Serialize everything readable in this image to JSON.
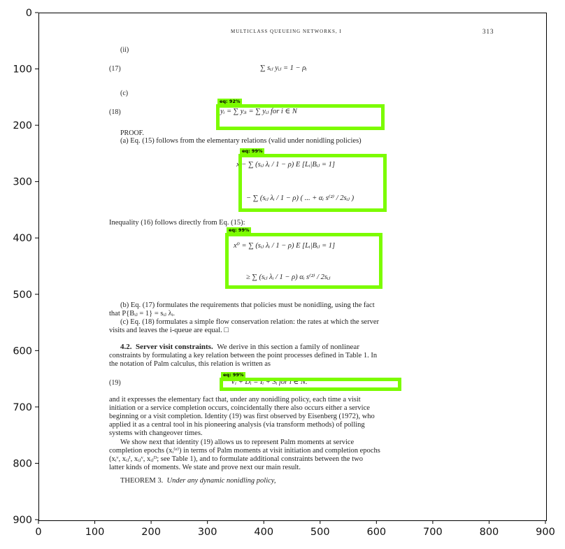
{
  "figure": {
    "x_ticks": [
      "0",
      "100",
      "200",
      "300",
      "400",
      "500",
      "600",
      "700",
      "800",
      "900"
    ],
    "y_ticks": [
      "0",
      "100",
      "200",
      "300",
      "400",
      "500",
      "600",
      "700",
      "800",
      "900"
    ]
  },
  "page": {
    "running_head": "MULTICLASS QUEUEING NETWORKS, I",
    "page_number": "313",
    "item_ii": "(ii)",
    "eq17_num": "(17)",
    "eq17_body": "∑ sᵢⱼ yᵢⱼ = 1 − ρᵢ",
    "item_c": "(c)",
    "eq18_num": "(18)",
    "eq18_body": "yᵢ = ∑ yⱼᵢ = ∑ yᵢⱼ    for i ∈ N",
    "proof_label": "PROOF.",
    "proof_a": "(a) Eq. (15) follows from the elementary relations (valid under nonidling policies)",
    "eq_a_line1": "x − ∑ (sᵢⱼ λᵢ / 1 − ρ) E [Lᵢ|Bᵢⱼ = 1]",
    "eq_a_line2": "− ∑ (sᵢⱼ λᵢ / 1 − ρ) ( ... + αᵢ s⁽²⁾ / 2sᵢⱼ )",
    "ineq16_text": "Inequality (16) follows directly from Eq. (15):",
    "eq16_line1": "x⁰ = ∑ (sᵢⱼ λᵢ / 1 − ρ) E [Lᵢ|Bᵢⱼ = 1]",
    "eq16_line2": "≥ ∑ (sᵢⱼ λᵢ / 1 − ρ) αᵢ s⁽²⁾ / 2sᵢⱼ",
    "para_b_1": "(b) Eq. (17) formulates the requirements that policies must be nonidling, using the fact",
    "para_b_2": "that P{Bᵢⱼ = 1} = sᵢⱼ λᵢ.",
    "para_c_1": "(c) Eq. (18) formulates a simple flow conservation relation: the rates at which the server",
    "para_c_2": "visits and leaves the i-queue are equal.   □",
    "section_num": "4.2.",
    "section_title": "Server visit constraints.",
    "section_1": "We derive in this section a family of nonlinear",
    "section_2": "constraints by formulating a key relation between the point processes defined in Table 1. In",
    "section_3": "the notation of Palm calculus, this relation is written as",
    "eq19_num": "(19)",
    "eq19_body": "Vᵢ + Dᵢ = Iᵢ + Sᵢ    for i ∈ N.",
    "para19_1": "and it expresses the elementary fact that, under any nonidling policy, each time a visit",
    "para19_2": "initiation or a service completion occurs, coincidentally there also occurs either a service",
    "para19_3": "beginning or a visit completion. Identity (19) was first observed by Eisenberg (1972), who",
    "para19_4": "applied it as a central tool in his pioneering analysis (via transform methods) of polling",
    "para19_5": "systems with changeover times.",
    "para_show_1": "We show next that identity (19) allows us to represent Palm moments at service",
    "para_show_2": "completion epochs (xᵢ⁽ᵉ⁾) in terms of Palm moments at visit initiation and completion epochs",
    "para_show_3": "(xᵢᵛ, xᵢⱼᴵ, xᵢⱼᵛ, xᵢⱼᴰ; see Table 1), and to formulate additional constraints between the two",
    "para_show_4": "latter kinds of moments. We state and prove next our main result.",
    "theorem_label": "THEOREM 3.",
    "theorem_text": "Under any dynamic nonidling policy,"
  },
  "detections": [
    {
      "label": "eq: 92%"
    },
    {
      "label": "eq: 99%"
    },
    {
      "label": "eq: 99%"
    },
    {
      "label": "eq: 99%"
    }
  ],
  "colors": {
    "box": "#7cfc00"
  }
}
